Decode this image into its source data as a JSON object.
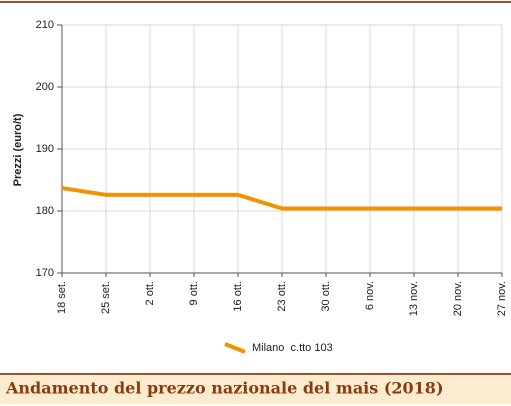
{
  "chart_data": {
    "type": "line",
    "title": "Andamento del prezzo nazionale del mais (2018)",
    "y_label": "Prezzi (euro/t)",
    "categories": [
      "18 set.",
      "25 set.",
      "2 ott.",
      "9 ott.",
      "16 ott.",
      "23 ott.",
      "30 ott.",
      "6 nov.",
      "13 nov.",
      "20 nov.",
      "27 nov."
    ],
    "series": [
      {
        "name": "Milano  c.tto 103",
        "color": "#f39200",
        "values": [
          183.7,
          182.6,
          182.6,
          182.6,
          182.6,
          180.4,
          180.4,
          180.4,
          180.4,
          180.4,
          180.4
        ]
      }
    ],
    "ylim": [
      170,
      210
    ],
    "yticks": [
      170,
      180,
      190,
      200,
      210
    ],
    "grid": true
  }
}
